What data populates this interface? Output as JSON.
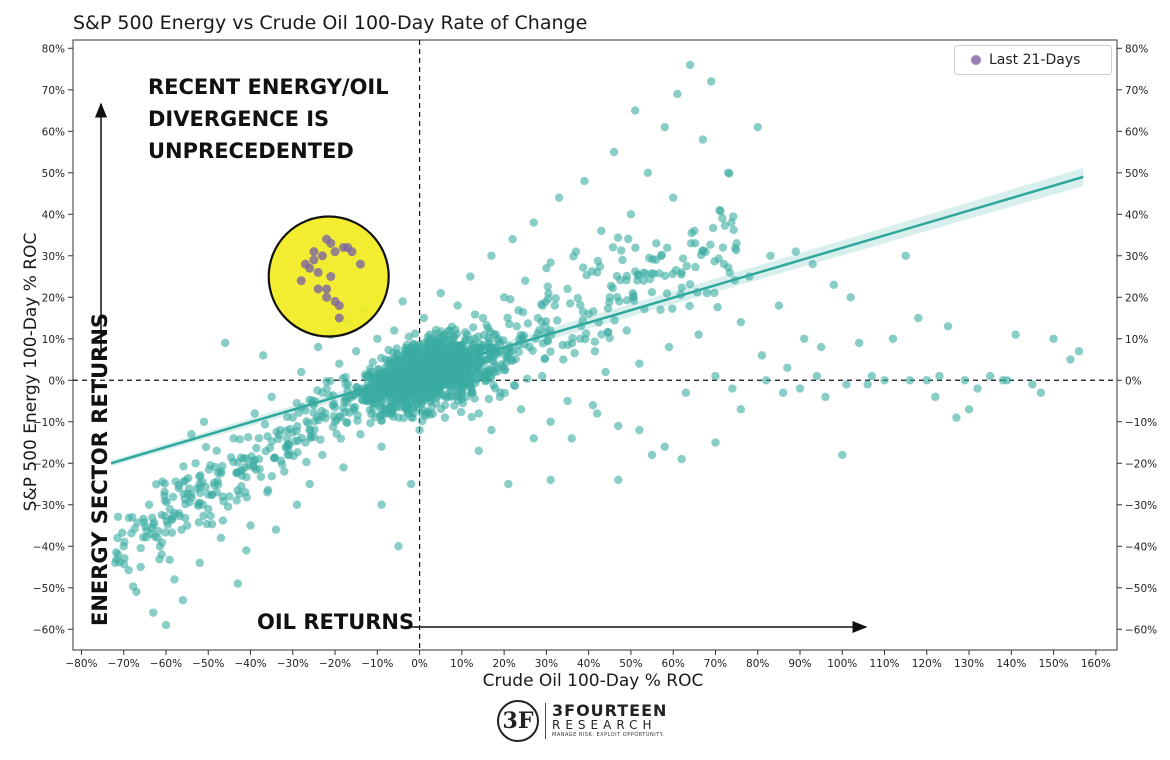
{
  "title": "S&P 500 Energy vs Crude Oil 100-Day Rate of Change",
  "legend": {
    "label": "Last 21-Days",
    "color": "#9b7fb6"
  },
  "annotations": {
    "headline": [
      "RECENT ENERGY/OIL",
      "DIVERGENCE IS",
      "UNPRECEDENTED"
    ],
    "x_arrow_label": "OIL RETURNS",
    "y_arrow_label": "ENERGY SECTOR RETURNS"
  },
  "logo": {
    "name": "3FOURTEEN",
    "sub": "RESEARCH",
    "tagline": "MANAGE RISK. EXPLOIT OPPORTUNITY."
  },
  "colors": {
    "history": "#3aaba2",
    "recent": "#7d65a0",
    "highlight": "#f2ec1f",
    "regression": "#2fa79d"
  },
  "chart_data": {
    "type": "scatter",
    "title": "S&P 500 Energy vs Crude Oil 100-Day Rate of Change",
    "xlabel": "Crude Oil 100-Day % ROC",
    "ylabel": "S&P 500 Energy 100-Day % ROC",
    "xlim": [
      -82,
      165
    ],
    "ylim": [
      -65,
      82
    ],
    "x_ticks": [
      -80,
      -70,
      -60,
      -50,
      -40,
      -30,
      -20,
      -10,
      0,
      10,
      20,
      30,
      40,
      50,
      60,
      70,
      80,
      90,
      100,
      110,
      120,
      130,
      140,
      150,
      160
    ],
    "y_ticks": [
      -60,
      -50,
      -40,
      -30,
      -20,
      -10,
      0,
      10,
      20,
      30,
      40,
      50,
      60,
      70,
      80
    ],
    "tick_suffix": "%",
    "reference_lines": {
      "x": 0,
      "y": 0
    },
    "regression_line": {
      "x": [
        -73,
        157
      ],
      "y": [
        -20,
        49
      ]
    },
    "series": [
      {
        "name": "",
        "points": [
          [
            -70,
            -40
          ],
          [
            -68,
            -33
          ],
          [
            -66,
            -45
          ],
          [
            -64,
            -30
          ],
          [
            -62,
            -38
          ],
          [
            -60,
            -59
          ],
          [
            -58,
            -48
          ],
          [
            -57,
            -26
          ],
          [
            -55,
            -35
          ],
          [
            -53,
            -20
          ],
          [
            -52,
            -44
          ],
          [
            -50,
            -31
          ],
          [
            -48,
            -17
          ],
          [
            -47,
            -38
          ],
          [
            -45,
            -28
          ],
          [
            -44,
            -14
          ],
          [
            -42,
            -23
          ],
          [
            -40,
            -35
          ],
          [
            -39,
            -8
          ],
          [
            -38,
            -19
          ],
          [
            -36,
            -27
          ],
          [
            -35,
            -4
          ],
          [
            -33,
            -12
          ],
          [
            -32,
            -22
          ],
          [
            -30,
            -9
          ],
          [
            -29,
            -30
          ],
          [
            -28,
            2
          ],
          [
            -27,
            -15
          ],
          [
            -25,
            -6
          ],
          [
            -24,
            8
          ],
          [
            -23,
            -18
          ],
          [
            -22,
            -2
          ],
          [
            -21,
            11
          ],
          [
            -20,
            -10
          ],
          [
            -19,
            4
          ],
          [
            -18,
            -21
          ],
          [
            -17,
            14
          ],
          [
            -16,
            -4
          ],
          [
            -15,
            7
          ],
          [
            -14,
            -13
          ],
          [
            -13,
            17
          ],
          [
            -12,
            1
          ],
          [
            -11,
            -7
          ],
          [
            -10,
            10
          ],
          [
            -9,
            -16
          ],
          [
            -8,
            5
          ],
          [
            -7,
            -3
          ],
          [
            -6,
            12
          ],
          [
            -5,
            -9
          ],
          [
            -4,
            19
          ],
          [
            -3,
            2
          ],
          [
            -2,
            -5
          ],
          [
            -1,
            8
          ],
          [
            0,
            -12
          ],
          [
            1,
            15
          ],
          [
            2,
            3
          ],
          [
            3,
            -2
          ],
          [
            4,
            9
          ],
          [
            5,
            21
          ],
          [
            6,
            -6
          ],
          [
            7,
            12
          ],
          [
            8,
            4
          ],
          [
            9,
            18
          ],
          [
            10,
            -3
          ],
          [
            11,
            7
          ],
          [
            12,
            25
          ],
          [
            13,
            10
          ],
          [
            14,
            -8
          ],
          [
            15,
            15
          ],
          [
            16,
            2
          ],
          [
            17,
            30
          ],
          [
            18,
            11
          ],
          [
            19,
            -4
          ],
          [
            20,
            20
          ],
          [
            21,
            6
          ],
          [
            22,
            34
          ],
          [
            23,
            13
          ],
          [
            24,
            -7
          ],
          [
            25,
            24
          ],
          [
            26,
            8
          ],
          [
            27,
            38
          ],
          [
            28,
            15
          ],
          [
            29,
            1
          ],
          [
            30,
            27
          ],
          [
            31,
            -10
          ],
          [
            32,
            18
          ],
          [
            33,
            44
          ],
          [
            34,
            5
          ],
          [
            35,
            22
          ],
          [
            36,
            -14
          ],
          [
            37,
            31
          ],
          [
            38,
            10
          ],
          [
            39,
            48
          ],
          [
            40,
            16
          ],
          [
            41,
            -6
          ],
          [
            42,
            26
          ],
          [
            43,
            36
          ],
          [
            44,
            2
          ],
          [
            45,
            20
          ],
          [
            46,
            55
          ],
          [
            47,
            -11
          ],
          [
            48,
            29
          ],
          [
            49,
            12
          ],
          [
            50,
            40
          ],
          [
            51,
            65
          ],
          [
            52,
            4
          ],
          [
            53,
            24
          ],
          [
            54,
            50
          ],
          [
            55,
            -18
          ],
          [
            56,
            33
          ],
          [
            57,
            17
          ],
          [
            58,
            61
          ],
          [
            59,
            8
          ],
          [
            60,
            44
          ],
          [
            61,
            69
          ],
          [
            62,
            26
          ],
          [
            63,
            -3
          ],
          [
            64,
            76
          ],
          [
            65,
            36
          ],
          [
            66,
            11
          ],
          [
            67,
            58
          ],
          [
            68,
            21
          ],
          [
            69,
            72
          ],
          [
            70,
            1
          ],
          [
            71,
            41
          ],
          [
            72,
            28
          ],
          [
            73,
            50
          ],
          [
            74,
            -2
          ],
          [
            75,
            33
          ],
          [
            76,
            14
          ],
          [
            78,
            25
          ],
          [
            80,
            61
          ],
          [
            81,
            6
          ],
          [
            83,
            30
          ],
          [
            85,
            18
          ],
          [
            87,
            3
          ],
          [
            89,
            31
          ],
          [
            90,
            -2
          ],
          [
            91,
            10
          ],
          [
            93,
            28
          ],
          [
            95,
            8
          ],
          [
            96,
            -4
          ],
          [
            98,
            23
          ],
          [
            100,
            -18
          ],
          [
            102,
            20
          ],
          [
            104,
            9
          ],
          [
            106,
            -1
          ],
          [
            110,
            0
          ],
          [
            112,
            10
          ],
          [
            115,
            30
          ],
          [
            118,
            15
          ],
          [
            120,
            0
          ],
          [
            122,
            -4
          ],
          [
            125,
            13
          ],
          [
            127,
            -9
          ],
          [
            129,
            0
          ],
          [
            132,
            -2
          ],
          [
            135,
            1
          ],
          [
            138,
            0
          ],
          [
            141,
            11
          ],
          [
            145,
            -1
          ],
          [
            150,
            10
          ],
          [
            154,
            5
          ],
          [
            156,
            7
          ],
          [
            -72,
            -44
          ],
          [
            -67,
            -51
          ],
          [
            -63,
            -56
          ],
          [
            -61,
            -42
          ],
          [
            -56,
            -53
          ],
          [
            -54,
            -13
          ],
          [
            -51,
            -10
          ],
          [
            -46,
            9
          ],
          [
            -43,
            -49
          ],
          [
            -41,
            -41
          ],
          [
            -37,
            6
          ],
          [
            -34,
            -36
          ],
          [
            -31,
            -17
          ],
          [
            -26,
            -25
          ],
          [
            -9,
            -30
          ],
          [
            -5,
            -40
          ],
          [
            -2,
            -25
          ],
          [
            6,
            -9
          ],
          [
            14,
            -17
          ],
          [
            17,
            -12
          ],
          [
            21,
            -25
          ],
          [
            27,
            -14
          ],
          [
            31,
            -24
          ],
          [
            35,
            -5
          ],
          [
            42,
            -8
          ],
          [
            47,
            -24
          ],
          [
            52,
            -12
          ],
          [
            58,
            -16
          ],
          [
            62,
            -19
          ],
          [
            70,
            -15
          ],
          [
            76,
            -7
          ],
          [
            82,
            0
          ],
          [
            86,
            -3
          ],
          [
            94,
            1
          ],
          [
            101,
            -1
          ],
          [
            107,
            1
          ],
          [
            116,
            0
          ],
          [
            123,
            1
          ],
          [
            130,
            -7
          ],
          [
            139,
            0
          ],
          [
            147,
            -3
          ]
        ]
      },
      {
        "name": "Last 21-Days",
        "points": [
          [
            -28,
            24
          ],
          [
            -27,
            28
          ],
          [
            -26,
            27
          ],
          [
            -25,
            29
          ],
          [
            -25,
            31
          ],
          [
            -24,
            26
          ],
          [
            -23,
            30
          ],
          [
            -22,
            34
          ],
          [
            -22,
            22
          ],
          [
            -21,
            25
          ],
          [
            -20,
            31
          ],
          [
            -20,
            19
          ],
          [
            -19,
            18
          ],
          [
            -18,
            32
          ],
          [
            -17,
            32
          ],
          [
            -24,
            22
          ],
          [
            -19,
            15
          ],
          [
            -14,
            28
          ],
          [
            -22,
            20
          ],
          [
            -16,
            31
          ],
          [
            -21,
            33
          ]
        ]
      }
    ]
  }
}
